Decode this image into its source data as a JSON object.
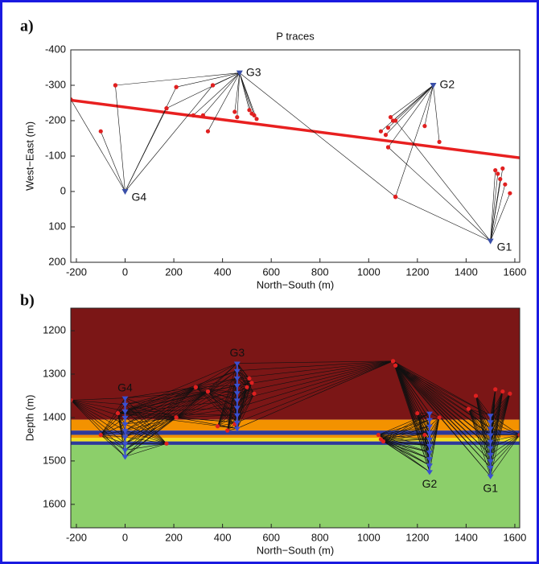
{
  "chart_data": [
    {
      "type": "scatter",
      "panel_label": "a)",
      "title": "P traces",
      "xlabel": "North−South (m)",
      "ylabel": "West−East (m)",
      "xlim": [
        -223,
        1620
      ],
      "ylim": [
        -400,
        200
      ],
      "invert_y": true,
      "xticks": [
        -200,
        0,
        200,
        400,
        600,
        800,
        1000,
        1200,
        1400,
        1600
      ],
      "yticks": [
        -400,
        -300,
        -200,
        -100,
        0,
        100,
        200
      ],
      "trajectory": {
        "x": [
          -223,
          1620
        ],
        "y": [
          -258,
          -95
        ],
        "color": "#e82020"
      },
      "event_color": "#e02020",
      "station_color": "#3a4fa8",
      "stations": [
        {
          "label": "G1",
          "x": 1500,
          "y": 140,
          "events": {
            "x": [
              1110,
              1520,
              1530,
              1540,
              1550,
              1560,
              1580,
              1080,
              1110
            ],
            "y": [
              15,
              -60,
              -50,
              -35,
              -65,
              -20,
              5,
              -125,
              -200
            ]
          }
        },
        {
          "label": "G2",
          "x": 1265,
          "y": -300,
          "events": {
            "x": [
              1050,
              1070,
              1080,
              1090,
              1100,
              1080,
              1230,
              1290,
              1110
            ],
            "y": [
              -170,
              -160,
              -180,
              -210,
              -200,
              -125,
              -185,
              -140,
              15
            ]
          }
        },
        {
          "label": "G3",
          "x": 470,
          "y": -335,
          "events": {
            "x": [
              -40,
              170,
              210,
              280,
              320,
              340,
              360,
              450,
              460,
              510,
              520,
              530,
              540,
              1110
            ],
            "y": [
              -300,
              -235,
              -295,
              -215,
              -215,
              -170,
              -300,
              -225,
              -210,
              -230,
              -220,
              -215,
              -205,
              15
            ]
          }
        },
        {
          "label": "G4",
          "x": 0,
          "y": 0,
          "events": {
            "x": [
              -223,
              -100,
              -40,
              170,
              210,
              360
            ],
            "y": [
              -260,
              -170,
              -300,
              -235,
              -295,
              -300
            ]
          }
        }
      ]
    },
    {
      "type": "section",
      "panel_label": "b)",
      "xlabel": "North−South (m)",
      "ylabel": "Depth (m)",
      "xlim": [
        -223,
        1620
      ],
      "ylim": [
        1148,
        1654
      ],
      "invert_y": true,
      "xticks": [
        -200,
        0,
        200,
        400,
        600,
        800,
        1000,
        1200,
        1400,
        1600
      ],
      "yticks": [
        1200,
        1300,
        1400,
        1500,
        1600
      ],
      "layers": [
        {
          "top": 1148,
          "bottom": 1405,
          "color": "#7b1616"
        },
        {
          "top": 1405,
          "bottom": 1430,
          "color": "#f39200"
        },
        {
          "top": 1430,
          "bottom": 1440,
          "color": "#2e3a9a"
        },
        {
          "top": 1440,
          "bottom": 1447,
          "color": "#f39200"
        },
        {
          "top": 1447,
          "bottom": 1455,
          "color": "#f0e020"
        },
        {
          "top": 1455,
          "bottom": 1463,
          "color": "#2e3a9a"
        },
        {
          "top": 1463,
          "bottom": 1654,
          "color": "#8ccf6a"
        }
      ],
      "event_color": "#e02020",
      "station_color": "#3a4fd0",
      "stations": [
        {
          "label": "G1",
          "x": 1500,
          "y": [
            1395,
            1410,
            1425,
            1440,
            1455,
            1470,
            1485,
            1500,
            1515,
            1535
          ],
          "events": {
            "x": [
              1100,
              1110,
              1410,
              1440,
              1520,
              1550,
              1580,
              1620
            ],
            "y": [
              1270,
              1280,
              1380,
              1350,
              1335,
              1340,
              1345,
              1440
            ]
          }
        },
        {
          "label": "G2",
          "x": 1250,
          "y": [
            1390,
            1405,
            1420,
            1435,
            1450,
            1465,
            1480,
            1495,
            1510,
            1525
          ],
          "events": {
            "x": [
              1040,
              1050,
              1060,
              1100,
              1110,
              1200,
              1230,
              1290
            ],
            "y": [
              1440,
              1450,
              1455,
              1270,
              1280,
              1390,
              1440,
              1400
            ]
          }
        },
        {
          "label": "G3",
          "x": 460,
          "y": [
            1275,
            1292,
            1309,
            1326,
            1343,
            1360,
            1377,
            1394,
            1411,
            1425
          ],
          "events": {
            "x": [
              -30,
              210,
              290,
              340,
              380,
              420,
              450,
              500,
              510,
              520,
              530,
              1100
            ],
            "y": [
              1390,
              1400,
              1330,
              1340,
              1420,
              1430,
              1415,
              1330,
              1310,
              1320,
              1345,
              1270
            ]
          }
        },
        {
          "label": "G4",
          "x": 0,
          "y": [
            1355,
            1370,
            1385,
            1400,
            1415,
            1430,
            1445,
            1460,
            1475,
            1490
          ],
          "events": {
            "x": [
              -223,
              -100,
              -30,
              170,
              210,
              290,
              340
            ],
            "y": [
              1360,
              1440,
              1390,
              1460,
              1400,
              1330,
              1340
            ]
          }
        }
      ]
    }
  ]
}
